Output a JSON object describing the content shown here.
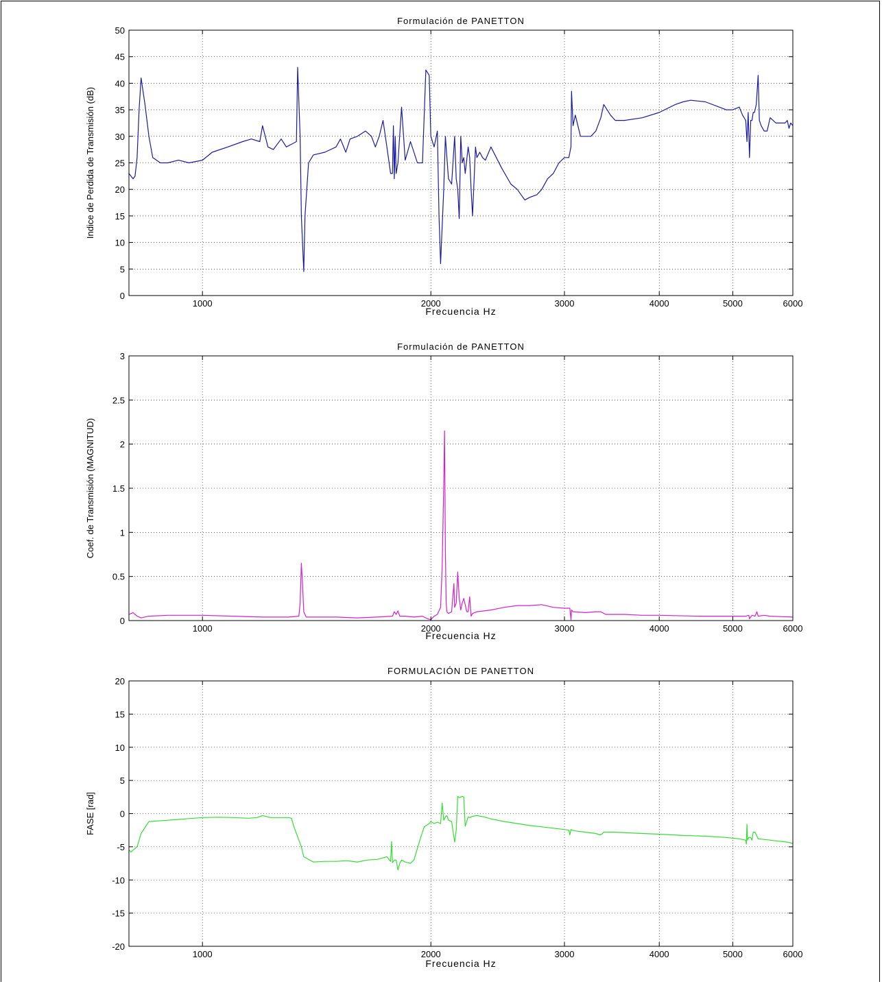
{
  "chart_data": [
    {
      "type": "line",
      "title": "Formulación de PANETTON",
      "xlabel": "Frecuencia Hz",
      "ylabel": "Indice de Perdida de Transmisión (dB)",
      "x_scale": "log",
      "xlim": [
        800,
        6000
      ],
      "ylim": [
        0,
        50
      ],
      "xticks": [
        1000,
        2000,
        3000,
        4000,
        5000,
        6000
      ],
      "yticks": [
        0,
        5,
        10,
        15,
        20,
        25,
        30,
        35,
        40,
        45,
        50
      ],
      "grid": true,
      "color": "#1a1aa0",
      "series": [
        {
          "x": [
            800,
            810,
            815,
            820,
            825,
            830,
            840,
            850,
            860,
            880,
            900,
            930,
            960,
            1000,
            1030,
            1080,
            1130,
            1160,
            1190,
            1200,
            1220,
            1240,
            1270,
            1290,
            1310,
            1330,
            1335,
            1345,
            1350,
            1360,
            1365,
            1380,
            1400,
            1450,
            1500,
            1520,
            1545,
            1565,
            1600,
            1640,
            1670,
            1690,
            1710,
            1730,
            1750,
            1770,
            1780,
            1785,
            1790,
            1795,
            1800,
            1810,
            1830,
            1850,
            1880,
            1920,
            1950,
            1970,
            1990,
            2000,
            2020,
            2040,
            2050,
            2060,
            2080,
            2090,
            2100,
            2110,
            2130,
            2150,
            2160,
            2170,
            2180,
            2190,
            2200,
            2210,
            2220,
            2240,
            2250,
            2260,
            2270,
            2290,
            2300,
            2320,
            2340,
            2360,
            2400,
            2480,
            2550,
            2600,
            2660,
            2700,
            2760,
            2800,
            2850,
            2900,
            2950,
            3000,
            3040,
            3060,
            3065,
            3080,
            3100,
            3150,
            3200,
            3250,
            3300,
            3350,
            3380,
            3450,
            3500,
            3600,
            3800,
            4000,
            4200,
            4300,
            4400,
            4600,
            4800,
            4900,
            5000,
            5100,
            5150,
            5200,
            5220,
            5240,
            5260,
            5280,
            5300,
            5320,
            5340,
            5370,
            5400,
            5420,
            5450,
            5500,
            5550,
            5600,
            5700,
            5800,
            5860,
            5900,
            5930,
            5960,
            6000
          ],
          "y": [
            23,
            22,
            22.5,
            26,
            35,
            41,
            36,
            30,
            26,
            25,
            25,
            25.5,
            25,
            25.5,
            27,
            28,
            29,
            29.5,
            29,
            32,
            28,
            27.5,
            29.5,
            28,
            28.5,
            29,
            43,
            30,
            15,
            4.5,
            15,
            25,
            26.5,
            27,
            28,
            29.5,
            27,
            29.5,
            30,
            31,
            30,
            28,
            30,
            33,
            28,
            23,
            23,
            32,
            22,
            30,
            23,
            25,
            35.5,
            25.5,
            29,
            25,
            25,
            42.5,
            41.5,
            30,
            28,
            31,
            15,
            6,
            20,
            30,
            26,
            22,
            21,
            30,
            22,
            20,
            14.5,
            30,
            25,
            26,
            23,
            28,
            26,
            20,
            15,
            28,
            26,
            27,
            26,
            25.5,
            28,
            24,
            21,
            20,
            18,
            18.5,
            19,
            20,
            22,
            23,
            25,
            26,
            26,
            28,
            38.5,
            32,
            34,
            30,
            30,
            30,
            31,
            33.5,
            36,
            34,
            33,
            33,
            33.5,
            34.5,
            36,
            36.5,
            36.8,
            36.5,
            35.5,
            35,
            35,
            35.5,
            34,
            33,
            29,
            34.5,
            26,
            33,
            33,
            34.5,
            34.5,
            36,
            41.5,
            33,
            32,
            31,
            31,
            33.5,
            32.5,
            32.5,
            32.5,
            33,
            31.5,
            32.5,
            32
          ]
        }
      ]
    },
    {
      "type": "line",
      "title": "Formulación de PANETTON",
      "xlabel": "Frecuencia Hz",
      "ylabel": "Coef. de Transmisión (MAGNITUD)",
      "x_scale": "log",
      "xlim": [
        800,
        6000
      ],
      "ylim": [
        0,
        3
      ],
      "xticks": [
        1000,
        2000,
        3000,
        4000,
        5000,
        6000
      ],
      "yticks": [
        0,
        0.5,
        1,
        1.5,
        2,
        2.5,
        3
      ],
      "ytick_labels": [
        "0",
        "0.5",
        "1",
        "1.5",
        "2",
        "2.5",
        "3"
      ],
      "grid": true,
      "color": "#d020d0",
      "series": [
        {
          "x": [
            800,
            810,
            820,
            830,
            850,
            900,
            1000,
            1100,
            1200,
            1300,
            1340,
            1345,
            1350,
            1355,
            1360,
            1370,
            1400,
            1500,
            1600,
            1700,
            1780,
            1790,
            1800,
            1810,
            1820,
            1850,
            1900,
            1950,
            1980,
            2000,
            2020,
            2040,
            2060,
            2070,
            2080,
            2085,
            2090,
            2095,
            2100,
            2110,
            2130,
            2145,
            2150,
            2160,
            2170,
            2180,
            2190,
            2200,
            2210,
            2220,
            2230,
            2240,
            2250,
            2260,
            2270,
            2300,
            2400,
            2500,
            2600,
            2700,
            2800,
            2900,
            3000,
            3050,
            3060,
            3065,
            3080,
            3200,
            3300,
            3350,
            3400,
            3600,
            3800,
            4000,
            4500,
            5000,
            5200,
            5250,
            5260,
            5300,
            5350,
            5380,
            5400,
            5500,
            5600,
            6000
          ],
          "y": [
            0.07,
            0.09,
            0.05,
            0.03,
            0.05,
            0.06,
            0.06,
            0.05,
            0.04,
            0.04,
            0.05,
            0.2,
            0.65,
            0.4,
            0.1,
            0.04,
            0.04,
            0.04,
            0.03,
            0.04,
            0.05,
            0.1,
            0.07,
            0.11,
            0.05,
            0.05,
            0.04,
            0.05,
            0.02,
            0.01,
            0.05,
            0.07,
            0.15,
            0.6,
            1.55,
            2.15,
            0.8,
            0.2,
            0.1,
            0.08,
            0.1,
            0.42,
            0.15,
            0.2,
            0.55,
            0.25,
            0.12,
            0.2,
            0.25,
            0.18,
            0.1,
            0.1,
            0.27,
            0.05,
            0.08,
            0.1,
            0.12,
            0.15,
            0.17,
            0.17,
            0.18,
            0.15,
            0.14,
            0.14,
            0.01,
            0.12,
            0.1,
            0.09,
            0.1,
            0.1,
            0.07,
            0.07,
            0.06,
            0.06,
            0.05,
            0.05,
            0.05,
            0.06,
            0.02,
            0.06,
            0.05,
            0.1,
            0.05,
            0.06,
            0.05,
            0.04
          ]
        }
      ]
    },
    {
      "type": "line",
      "title": "FORMULACIÓN DE PANETTON",
      "xlabel": "Frecuencia Hz",
      "ylabel": "FASE [rad]",
      "x_scale": "log",
      "xlim": [
        800,
        6000
      ],
      "ylim": [
        -20,
        20
      ],
      "xticks": [
        1000,
        2000,
        3000,
        4000,
        5000,
        6000
      ],
      "yticks": [
        -20,
        -15,
        -10,
        -5,
        0,
        5,
        10,
        15,
        20
      ],
      "grid": true,
      "color": "#33dd33",
      "series": [
        {
          "x": [
            800,
            805,
            810,
            820,
            830,
            850,
            900,
            950,
            1000,
            1050,
            1100,
            1150,
            1180,
            1200,
            1230,
            1300,
            1310,
            1320,
            1340,
            1350,
            1360,
            1400,
            1450,
            1500,
            1550,
            1600,
            1650,
            1700,
            1750,
            1770,
            1775,
            1780,
            1790,
            1800,
            1810,
            1820,
            1830,
            1850,
            1880,
            1900,
            1940,
            1960,
            1990,
            2000,
            2020,
            2040,
            2060,
            2070,
            2080,
            2090,
            2100,
            2110,
            2130,
            2150,
            2160,
            2170,
            2180,
            2190,
            2200,
            2210,
            2220,
            2240,
            2250,
            2270,
            2300,
            2350,
            2400,
            2500,
            2600,
            2700,
            2800,
            2900,
            3000,
            3040,
            3050,
            3060,
            3070,
            3100,
            3200,
            3300,
            3340,
            3360,
            3380,
            3500,
            3800,
            4000,
            4300,
            4600,
            4900,
            5100,
            5200,
            5210,
            5220,
            5230,
            5250,
            5280,
            5300,
            5320,
            5350,
            5400,
            5500,
            5700,
            5900,
            6000
          ],
          "y": [
            -5.5,
            -5.8,
            -5.5,
            -5,
            -3,
            -1.2,
            -1,
            -0.8,
            -0.6,
            -0.55,
            -0.6,
            -0.7,
            -0.6,
            -0.3,
            -0.6,
            -0.6,
            -0.7,
            -2,
            -4,
            -5,
            -6.5,
            -7.3,
            -7.2,
            -7.2,
            -7.1,
            -7.3,
            -7,
            -6.9,
            -6.5,
            -7.2,
            -4.2,
            -7.4,
            -7,
            -7,
            -8.5,
            -7.5,
            -7,
            -7.3,
            -7.5,
            -7,
            -3.5,
            -2,
            -1.5,
            -1.2,
            -1.5,
            -1.3,
            -1.5,
            1.6,
            -1,
            -0.5,
            -0.3,
            -1,
            -1.2,
            -4.3,
            -2.5,
            2.6,
            2.4,
            2.5,
            2.6,
            2.5,
            -1.9,
            -0.5,
            -0.6,
            -0.4,
            -0.3,
            -0.5,
            -0.8,
            -1.2,
            -1.5,
            -1.8,
            -2,
            -2.2,
            -2.4,
            -2.5,
            -3.2,
            -2.4,
            -2.5,
            -2.6,
            -2.8,
            -3,
            -3.2,
            -3.1,
            -2.8,
            -2.8,
            -3,
            -3.1,
            -3.3,
            -3.4,
            -3.6,
            -3.8,
            -4,
            -4.6,
            -1.6,
            -4,
            -3.6,
            -3.6,
            -4,
            -2.8,
            -2.8,
            -3.8,
            -3.9,
            -4.1,
            -4.3,
            -4.5
          ]
        }
      ]
    }
  ]
}
